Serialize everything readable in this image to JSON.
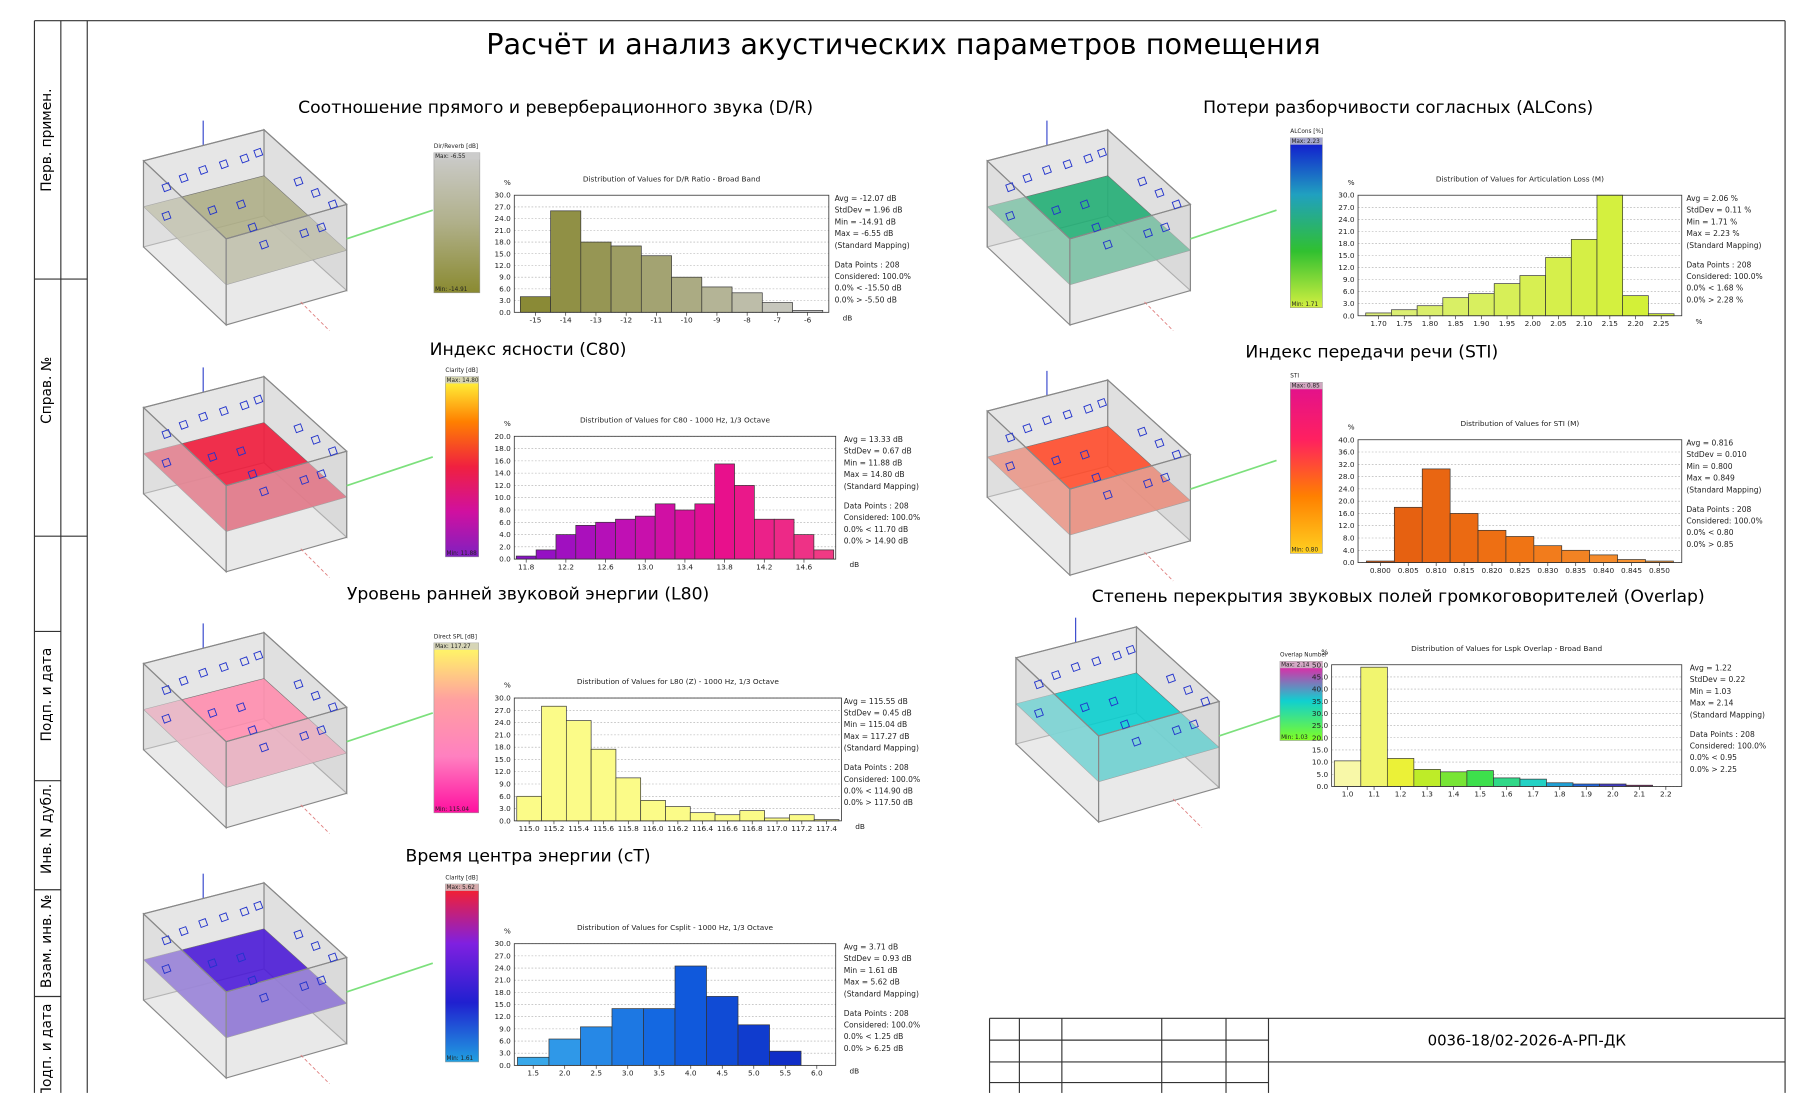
{
  "title": "Расчёт и анализ акустических параметров помещения",
  "side_labels": [
    "Перв. примен.",
    "Справ. №",
    "Подп. и дата",
    "Инв. N дубл.",
    "Взам. инв. №",
    "Подп. и дата"
  ],
  "stamp": {
    "code": "0036-18/02-2026-А-РП-ДК"
  },
  "chart_data": [
    {
      "type": "histogram",
      "heading": "Соотношение прямого и реверберационного звука (D/R)",
      "legend_title": "Dir/Reverb [dB]",
      "legend_labels": [
        "Max: -6.55",
        "Min: -14.91"
      ],
      "title": "Distribution of Values for D/R Ratio - Broad Band",
      "ylabel": "%",
      "xlabel": "dB",
      "bins": [
        -15.5,
        -14.5,
        -13.5,
        -12.5,
        -11.5,
        -10.5,
        -9.5,
        -8.5,
        -7.5,
        -6.5,
        -5.5
      ],
      "values": [
        4,
        26,
        18,
        17,
        14.5,
        9,
        6.5,
        5,
        2.5,
        0.5
      ],
      "xlim": [
        -15.7,
        -5.3
      ],
      "ylim": [
        0,
        30
      ],
      "xticks": [
        -15,
        -14,
        -13,
        -12,
        -11,
        -10,
        -9,
        -8,
        -7,
        -6
      ],
      "yticks": [
        {
          "value": 0,
          "label": "0.0"
        },
        {
          "value": 3,
          "label": "3.0"
        },
        {
          "value": 6,
          "label": "6.0"
        },
        {
          "value": 9,
          "label": "9.0"
        },
        {
          "value": 12,
          "label": "12.0"
        },
        {
          "value": 15,
          "label": "15.0"
        },
        {
          "value": 18,
          "label": "18.0"
        },
        {
          "value": 21,
          "label": "21.0"
        },
        {
          "value": 24,
          "label": "24.0"
        },
        {
          "value": 27,
          "label": "27.0"
        },
        {
          "value": 30,
          "label": "30.0"
        }
      ],
      "grid": true,
      "colors": [
        "#8a8a36",
        "#a6a67a",
        "#cfcfcf"
      ],
      "legend_colors": [
        "#8a8a30",
        "#b0b08a",
        "#cccccc"
      ],
      "stats": [
        "Avg = -12.07 dB",
        "StdDev = 1.96 dB",
        "Min = -14.91 dB",
        "Max = -6.55 dB",
        "(Standard Mapping)",
        "Data Points : 208",
        "Considered: 100.0%",
        "0.0% < -15.50 dB",
        "0.0% > -5.50 dB"
      ]
    },
    {
      "type": "histogram",
      "heading": "Потери разборчивости согласных (ALCons)",
      "legend_title": "ALCons [%]",
      "legend_labels": [
        "Max: 2.23",
        "Min: 1.71"
      ],
      "title": "Distribution of Values for Articulation Loss (M)",
      "ylabel": "%",
      "xlabel": "%",
      "bins": [
        1.675,
        1.725,
        1.775,
        1.825,
        1.875,
        1.925,
        1.975,
        2.025,
        2.075,
        2.125,
        2.175,
        2.225,
        2.275
      ],
      "values": [
        0.7,
        1.5,
        2.5,
        4.5,
        5.5,
        8,
        10,
        14.5,
        19,
        30,
        5,
        0.5
      ],
      "xlim": [
        1.66,
        2.29
      ],
      "ylim": [
        0,
        30
      ],
      "xticks": [
        {
          "value": 1.7,
          "label": "1.70"
        },
        1.75,
        {
          "value": 1.8,
          "label": "1.80"
        },
        1.85,
        {
          "value": 1.9,
          "label": "1.90"
        },
        1.95,
        {
          "value": 2,
          "label": "2.00"
        },
        2.05,
        {
          "value": 2.1,
          "label": "2.10"
        },
        2.15,
        {
          "value": 2.2,
          "label": "2.20"
        },
        2.25
      ],
      "yticks": [
        {
          "value": 0,
          "label": "0.0"
        },
        {
          "value": 3,
          "label": "3.0"
        },
        {
          "value": 6,
          "label": "6.0"
        },
        {
          "value": 9,
          "label": "9.0"
        },
        {
          "value": 12,
          "label": "12.0"
        },
        {
          "value": 15,
          "label": "15.0"
        },
        {
          "value": 18,
          "label": "18.0"
        },
        {
          "value": 21,
          "label": "21.0"
        },
        {
          "value": 24,
          "label": "24.0"
        },
        {
          "value": 27,
          "label": "27.0"
        },
        {
          "value": 30,
          "label": "30.0"
        }
      ],
      "grid": true,
      "colors": [
        "#dcee78",
        "#d2f032"
      ],
      "legend_colors": [
        "#d4f040",
        "#30c030",
        "#20a0c0",
        "#1010d0"
      ],
      "stats": [
        "Avg = 2.06 %",
        "StdDev = 0.11 %",
        "Min = 1.71 %",
        "Max = 2.23 %",
        "(Standard Mapping)",
        "Data Points : 208",
        "Considered: 100.0%",
        "0.0% < 1.68 %",
        "0.0% > 2.28 %"
      ]
    },
    {
      "type": "histogram",
      "heading": "Индекс ясности (C80)",
      "legend_title": "Clarity [dB]",
      "legend_labels": [
        "Max: 14.80",
        "Min: 11.88"
      ],
      "title": "Distribution of Values for C80 - 1000 Hz, 1/3 Octave",
      "ylabel": "%",
      "xlabel": "dB",
      "bins": [
        11.7,
        11.9,
        12.1,
        12.3,
        12.5,
        12.7,
        12.9,
        13.1,
        13.3,
        13.5,
        13.7,
        13.9,
        14.1,
        14.3,
        14.5,
        14.7,
        14.9
      ],
      "values": [
        0.5,
        1.5,
        4,
        5.5,
        6,
        6.5,
        7,
        9,
        8,
        9,
        15.5,
        12,
        6.5,
        6.5,
        4,
        1.5
      ],
      "xlim": [
        11.68,
        14.92
      ],
      "ylim": [
        0,
        20
      ],
      "xticks": [
        11.8,
        12.2,
        12.6,
        {
          "value": 13,
          "label": "13.0"
        },
        13.4,
        13.8,
        14.2,
        14.6
      ],
      "yticks": [
        {
          "value": 0,
          "label": "0.0"
        },
        {
          "value": 2,
          "label": "2.0"
        },
        {
          "value": 4,
          "label": "4.0"
        },
        {
          "value": 6,
          "label": "6.0"
        },
        {
          "value": 8,
          "label": "8.0"
        },
        {
          "value": 10,
          "label": "10.0"
        },
        {
          "value": 12,
          "label": "12.0"
        },
        {
          "value": 14,
          "label": "14.0"
        },
        {
          "value": 16,
          "label": "16.0"
        },
        {
          "value": 18,
          "label": "18.0"
        },
        {
          "value": 20,
          "label": "20.0"
        }
      ],
      "grid": true,
      "colors": [
        "#8a10c8",
        "#c010b4",
        "#e8108c",
        "#f03a84"
      ],
      "legend_colors": [
        "#8020c0",
        "#d010a0",
        "#f02040",
        "#ff8000",
        "#ffff40"
      ],
      "stats": [
        "Avg = 13.33 dB",
        "StdDev = 0.67 dB",
        "Min = 11.88 dB",
        "Max = 14.80 dB",
        "(Standard Mapping)",
        "Data Points : 208",
        "Considered: 100.0%",
        "0.0% < 11.70 dB",
        "0.0% > 14.90 dB"
      ]
    },
    {
      "type": "histogram",
      "heading": "Индекс передачи речи (STI)",
      "legend_title": "STI",
      "legend_labels": [
        "Max: 0.85",
        "Min: 0.80"
      ],
      "title": "Distribution of Values for STI (M)",
      "ylabel": "%",
      "bins": [
        0.7975,
        0.8025,
        0.8075,
        0.8125,
        0.8175,
        0.8225,
        0.8275,
        0.8325,
        0.8375,
        0.8425,
        0.8475,
        0.8525
      ],
      "values": [
        0.5,
        18,
        30.5,
        16,
        10.5,
        8.5,
        5.5,
        4,
        2.5,
        1,
        0.5
      ],
      "xlim": [
        0.796,
        0.854
      ],
      "ylim": [
        0,
        40
      ],
      "xticks": [
        {
          "value": 0.8,
          "label": "0.800"
        },
        0.805,
        {
          "value": 0.81,
          "label": "0.810"
        },
        0.815,
        {
          "value": 0.82,
          "label": "0.820"
        },
        0.825,
        {
          "value": 0.83,
          "label": "0.830"
        },
        0.835,
        {
          "value": 0.84,
          "label": "0.840"
        },
        0.845,
        {
          "value": 0.85,
          "label": "0.850"
        }
      ],
      "yticks": [
        {
          "value": 0,
          "label": "0.0"
        },
        {
          "value": 4,
          "label": "4.0"
        },
        {
          "value": 8,
          "label": "8.0"
        },
        {
          "value": 12,
          "label": "12.0"
        },
        {
          "value": 16,
          "label": "16.0"
        },
        {
          "value": 20,
          "label": "20.0"
        },
        {
          "value": 24,
          "label": "24.0"
        },
        {
          "value": 28,
          "label": "28.0"
        },
        {
          "value": 32,
          "label": "32.0"
        },
        {
          "value": 36,
          "label": "36.0"
        },
        {
          "value": 40,
          "label": "40.0"
        }
      ],
      "grid": true,
      "colors": [
        "#e45c10",
        "#f07414",
        "#f89a3a"
      ],
      "legend_colors": [
        "#ffd020",
        "#ff8000",
        "#ff2060",
        "#e01090"
      ],
      "stats": [
        "Avg = 0.816",
        "StdDev = 0.010",
        "Min = 0.800",
        "Max = 0.849",
        "(Standard Mapping)",
        "Data Points : 208",
        "Considered: 100.0%",
        "0.0% < 0.80",
        "0.0% > 0.85"
      ]
    },
    {
      "type": "histogram",
      "heading": "Уровень ранней звуковой энергии (L80)",
      "legend_title": "Direct SPL [dB]",
      "legend_labels": [
        "Max: 117.27",
        "Min: 115.04"
      ],
      "title": "Distribution of Values for L80 (Z) - 1000 Hz, 1/3 Octave",
      "ylabel": "%",
      "xlabel": "dB",
      "bins": [
        114.9,
        115.1,
        115.3,
        115.5,
        115.7,
        115.9,
        116.1,
        116.3,
        116.5,
        116.7,
        116.9,
        117.1,
        117.3,
        117.5
      ],
      "values": [
        6,
        28,
        24.5,
        17.5,
        10.5,
        5,
        3.5,
        2,
        1.5,
        2.5,
        0.7,
        1.5,
        0.3
      ],
      "xlim": [
        114.88,
        117.52
      ],
      "ylim": [
        0,
        30
      ],
      "xticks": [
        {
          "value": 115,
          "label": "115.0"
        },
        115.2,
        115.4,
        115.6,
        115.8,
        {
          "value": 116,
          "label": "116.0"
        },
        116.2,
        116.4,
        116.6,
        116.8,
        {
          "value": 117,
          "label": "117.0"
        },
        117.2,
        117.4
      ],
      "yticks": [
        {
          "value": 0,
          "label": "0.0"
        },
        {
          "value": 3,
          "label": "3.0"
        },
        {
          "value": 6,
          "label": "6.0"
        },
        {
          "value": 9,
          "label": "9.0"
        },
        {
          "value": 12,
          "label": "12.0"
        },
        {
          "value": 15,
          "label": "15.0"
        },
        {
          "value": 18,
          "label": "18.0"
        },
        {
          "value": 21,
          "label": "21.0"
        },
        {
          "value": 24,
          "label": "24.0"
        },
        {
          "value": 27,
          "label": "27.0"
        },
        {
          "value": 30,
          "label": "30.0"
        }
      ],
      "grid": true,
      "colors": [
        "#fbfb88"
      ],
      "legend_colors": [
        "#ff10a0",
        "#ff80c0",
        "#ffa0a0",
        "#ffff60"
      ],
      "stats": [
        "Avg = 115.55 dB",
        "StdDev = 0.45 dB",
        "Min = 115.04 dB",
        "Max = 117.27 dB",
        "(Standard Mapping)",
        "Data Points : 208",
        "Considered: 100.0%",
        "0.0% < 114.90 dB",
        "0.0% > 117.50 dB"
      ]
    },
    {
      "type": "histogram",
      "heading": "Степень перекрытия звуковых полей громкоговорителей (Overlap)",
      "legend_title": "Overlap Number",
      "legend_labels": [
        "Max: 2.14",
        "Min: 1.03"
      ],
      "title": "Distribution of Values for Lspk Overlap - Broad Band",
      "ylabel": "%",
      "bins": [
        0.95,
        1.05,
        1.15,
        1.25,
        1.35,
        1.45,
        1.55,
        1.65,
        1.75,
        1.85,
        1.95,
        2.05,
        2.15,
        2.25
      ],
      "values": [
        10.5,
        49,
        11.5,
        7,
        6,
        6.5,
        3.5,
        3,
        1.5,
        1,
        1,
        0.5,
        0
      ],
      "xlim": [
        0.94,
        2.26
      ],
      "ylim": [
        0,
        50
      ],
      "xticks": [
        {
          "value": 1,
          "label": "1.0"
        },
        1.1,
        1.2,
        1.3,
        1.4,
        1.5,
        1.6,
        1.7,
        1.8,
        1.9,
        {
          "value": 2,
          "label": "2.0"
        },
        2.1,
        2.2
      ],
      "yticks": [
        {
          "value": 0,
          "label": "0.0"
        },
        {
          "value": 5,
          "label": "5.0"
        },
        {
          "value": 10,
          "label": "10.0"
        },
        {
          "value": 15,
          "label": "15.0"
        },
        {
          "value": 20,
          "label": "20.0"
        },
        {
          "value": 25,
          "label": "25.0"
        },
        {
          "value": 30,
          "label": "30.0"
        },
        {
          "value": 35,
          "label": "35.0"
        },
        {
          "value": 40,
          "label": "40.0"
        },
        {
          "value": 45,
          "label": "45.0"
        },
        {
          "value": 50,
          "label": "50.0"
        }
      ],
      "grid": true,
      "colors": [
        "#f8f8a8",
        "#e8f020",
        "#40e040",
        "#20d0d0",
        "#2040e0",
        "#e02020"
      ],
      "legend_colors": [
        "#80ff20",
        "#10d0d0",
        "#ff10a0"
      ],
      "stats": [
        "Avg = 1.22",
        "StdDev = 0.22",
        "Min = 1.03",
        "Max = 2.14",
        "(Standard Mapping)",
        "Data Points : 208",
        "Considered: 100.0%",
        "0.0% < 0.95",
        "0.0% > 2.25"
      ]
    },
    {
      "type": "histogram",
      "heading": "Время центра энергии (cT)",
      "legend_title": "Clarity [dB]",
      "legend_labels": [
        "Max: 5.62",
        "Min: 1.61"
      ],
      "title": "Distribution of Values for Csplit - 1000 Hz, 1/3 Octave",
      "ylabel": "%",
      "xlabel": "dB",
      "bins": [
        1.25,
        1.75,
        2.25,
        2.75,
        3.25,
        3.75,
        4.25,
        4.75,
        5.25,
        5.75,
        6.25
      ],
      "values": [
        2,
        6.5,
        9.5,
        14,
        14,
        24.5,
        17,
        10,
        3.5,
        0
      ],
      "xlim": [
        1.2,
        6.3
      ],
      "ylim": [
        0,
        30
      ],
      "xticks": [
        1.5,
        {
          "value": 2,
          "label": "2.0"
        },
        2.5,
        {
          "value": 3,
          "label": "3.0"
        },
        3.5,
        {
          "value": 4,
          "label": "4.0"
        },
        4.5,
        {
          "value": 5,
          "label": "5.0"
        },
        5.5,
        {
          "value": 6,
          "label": "6.0"
        }
      ],
      "yticks": [
        {
          "value": 0,
          "label": "0.0"
        },
        {
          "value": 3,
          "label": "3.0"
        },
        {
          "value": 6,
          "label": "6.0"
        },
        {
          "value": 9,
          "label": "9.0"
        },
        {
          "value": 12,
          "label": "12.0"
        },
        {
          "value": 15,
          "label": "15.0"
        },
        {
          "value": 18,
          "label": "18.0"
        },
        {
          "value": 21,
          "label": "21.0"
        },
        {
          "value": 24,
          "label": "24.0"
        },
        {
          "value": 27,
          "label": "27.0"
        },
        {
          "value": 30,
          "label": "30.0"
        }
      ],
      "grid": true,
      "colors": [
        "#38a8ea",
        "#1060e0",
        "#1020c0"
      ],
      "legend_colors": [
        "#20a0e0",
        "#2020d0",
        "#8020e0",
        "#ff2020"
      ],
      "stats": [
        "Avg = 3.71 dB",
        "StdDev = 0.93 dB",
        "Min = 1.61 dB",
        "Max = 5.62 dB",
        "(Standard Mapping)",
        "Data Points : 208",
        "Considered: 100.0%",
        "0.0% < 1.25 dB",
        "0.0% > 6.25 dB"
      ]
    }
  ]
}
